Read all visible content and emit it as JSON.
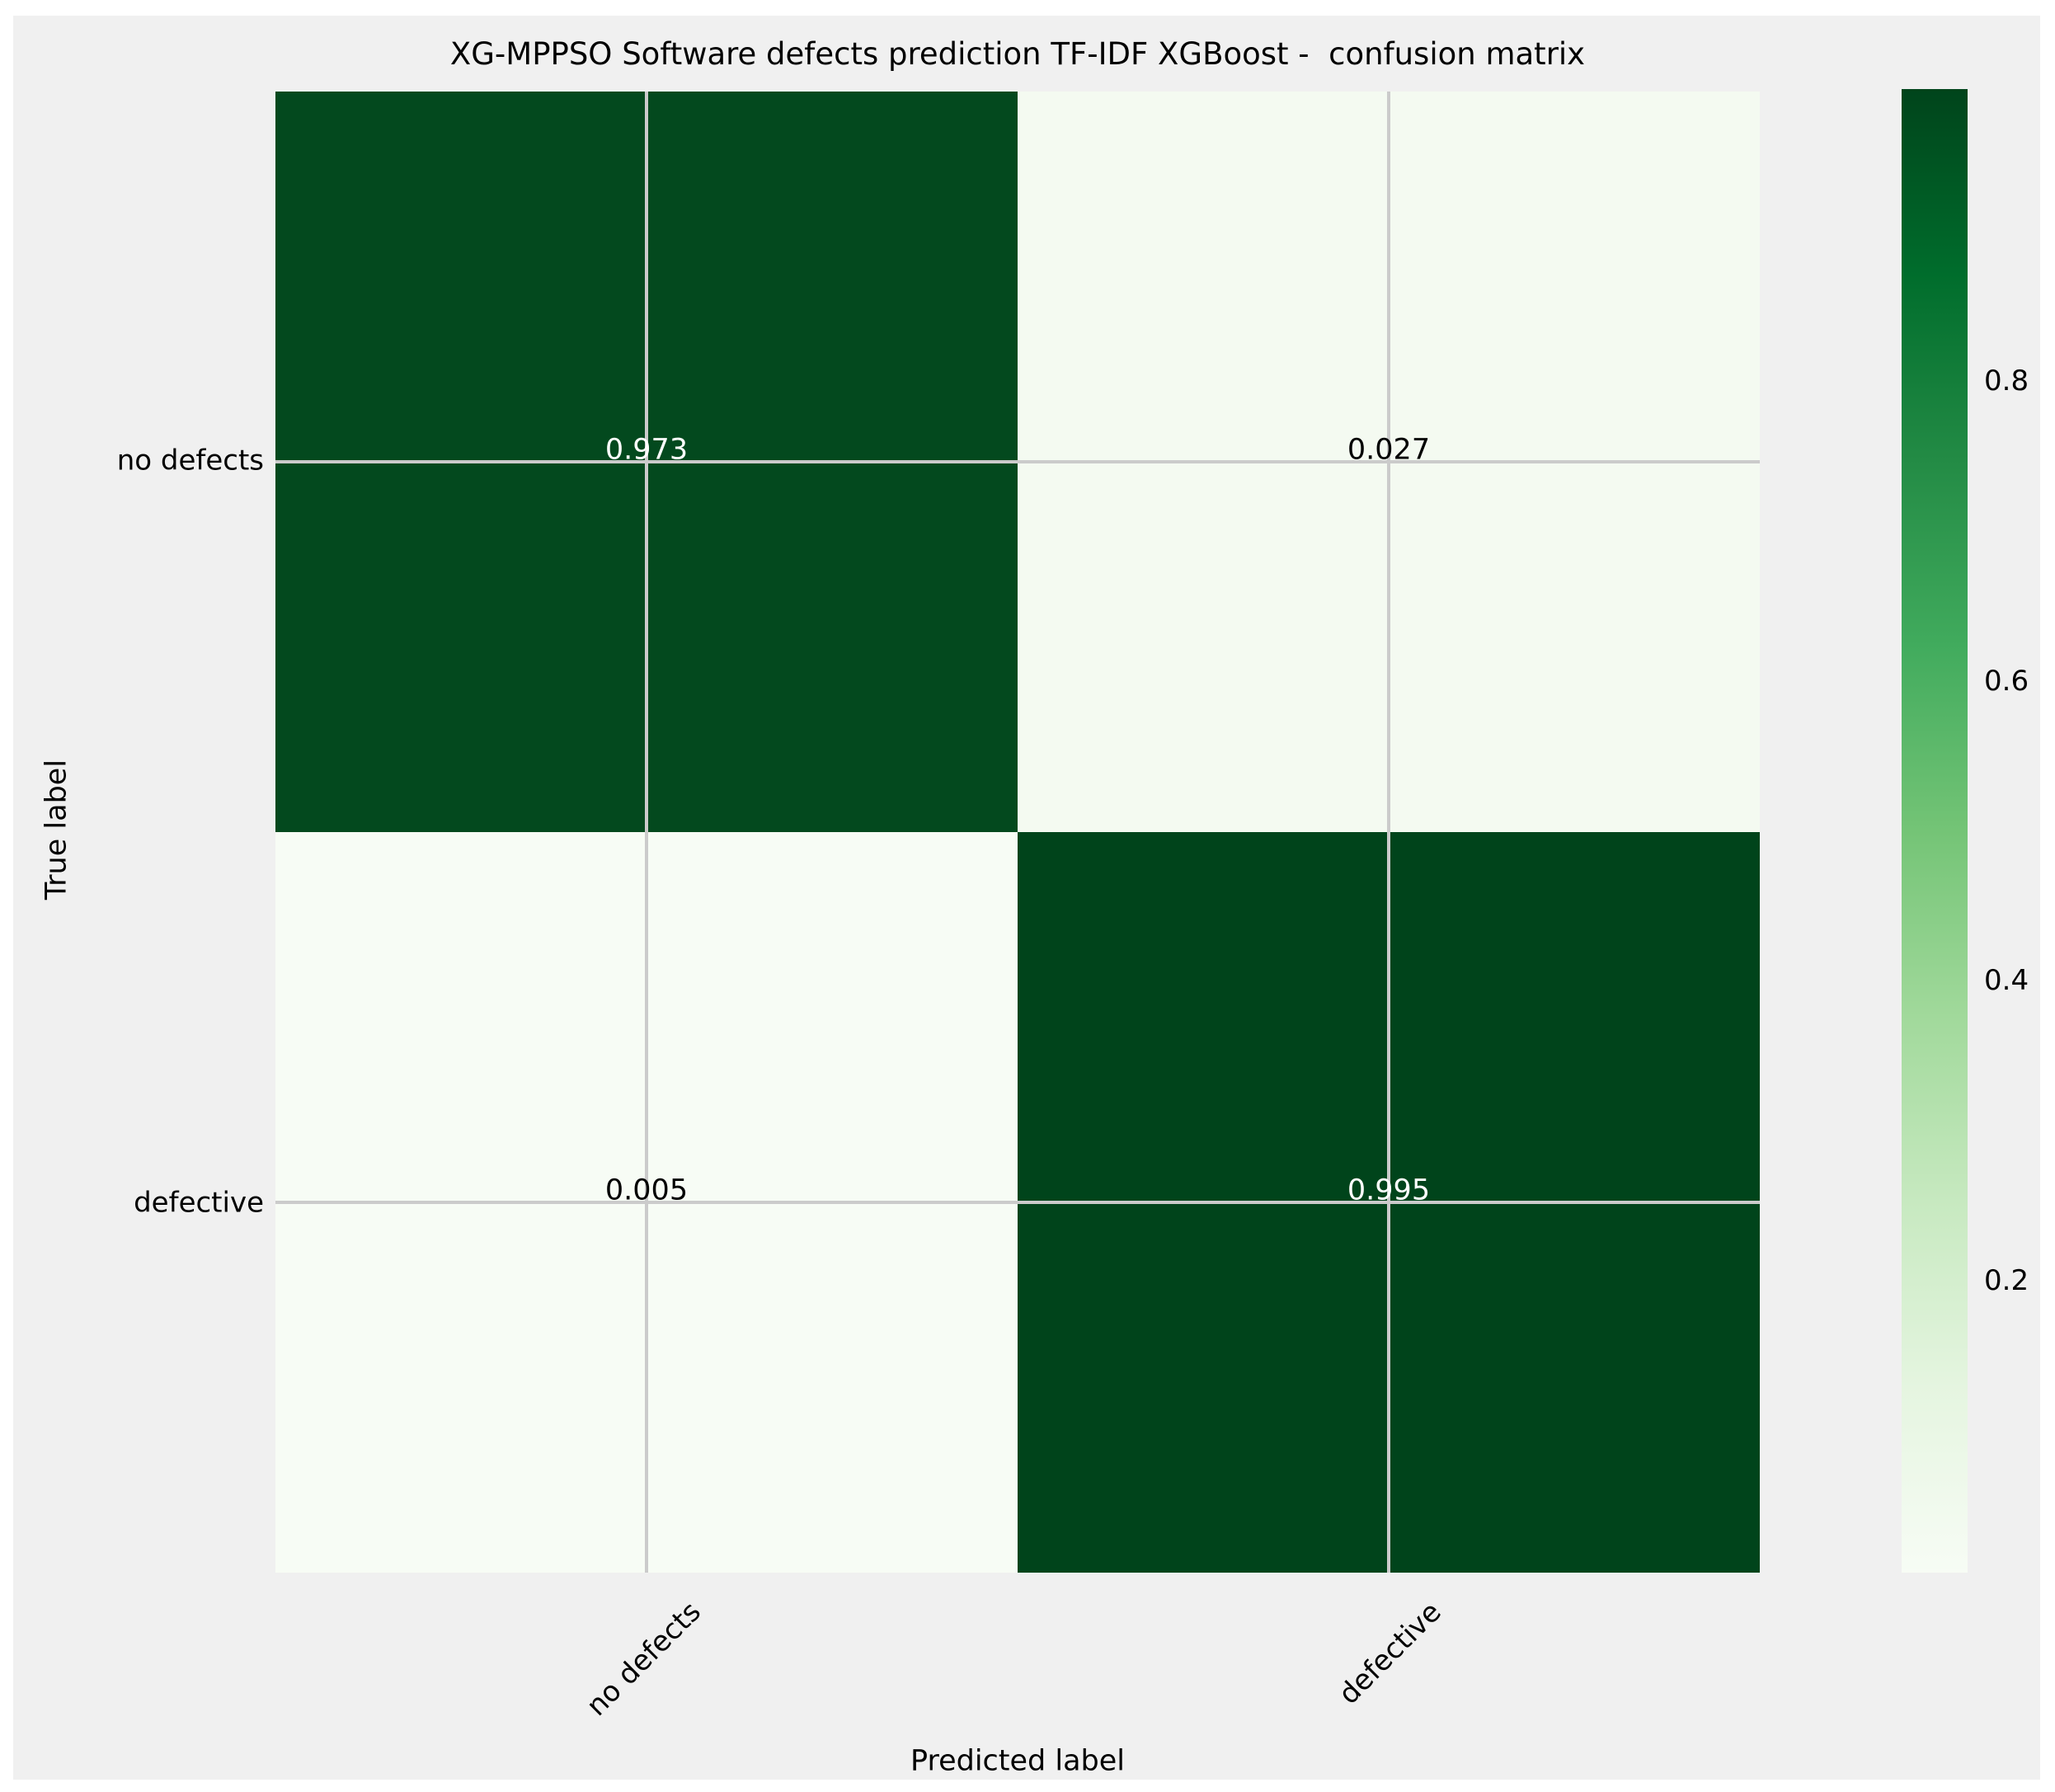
{
  "figure": {
    "title": "XG-MPPSO Software defects prediction TF-IDF XGBoost -  confusion matrix",
    "xlabel": "Predicted label",
    "ylabel": "True label"
  },
  "chart_data": {
    "type": "heatmap",
    "title": "XG-MPPSO Software defects prediction TF-IDF XGBoost -  confusion matrix",
    "xlabel": "Predicted label",
    "ylabel": "True label",
    "x_categories": [
      "no defects",
      "defective"
    ],
    "y_categories": [
      "no defects",
      "defective"
    ],
    "matrix": [
      [
        0.973,
        0.027
      ],
      [
        0.005,
        0.995
      ]
    ],
    "cell_colors": [
      [
        "#03491e",
        "#f4faf1"
      ],
      [
        "#f7fcf5",
        "#00441b"
      ]
    ],
    "cell_text_colors": [
      [
        "#ffffff",
        "#000000"
      ],
      [
        "#000000",
        "#ffffff"
      ]
    ],
    "colormap": "Greens",
    "colormap_stops": [
      "#f7fcf5",
      "#e5f5e0",
      "#c7e9c0",
      "#a1d99b",
      "#74c476",
      "#41ab5d",
      "#238b45",
      "#006d2c",
      "#00441b"
    ],
    "colorbar_ticks": [
      0.8,
      0.6,
      0.4,
      0.2
    ],
    "vmin": 0.005,
    "vmax": 0.995,
    "grid": true,
    "legend_position": "colorbar-right"
  },
  "colors": {
    "page_background": "#ffffff",
    "figure_background": "#f0f0f0",
    "gridline": "#cbcbcb",
    "text": "#000000",
    "dark_cell_text": "#ffffff"
  }
}
